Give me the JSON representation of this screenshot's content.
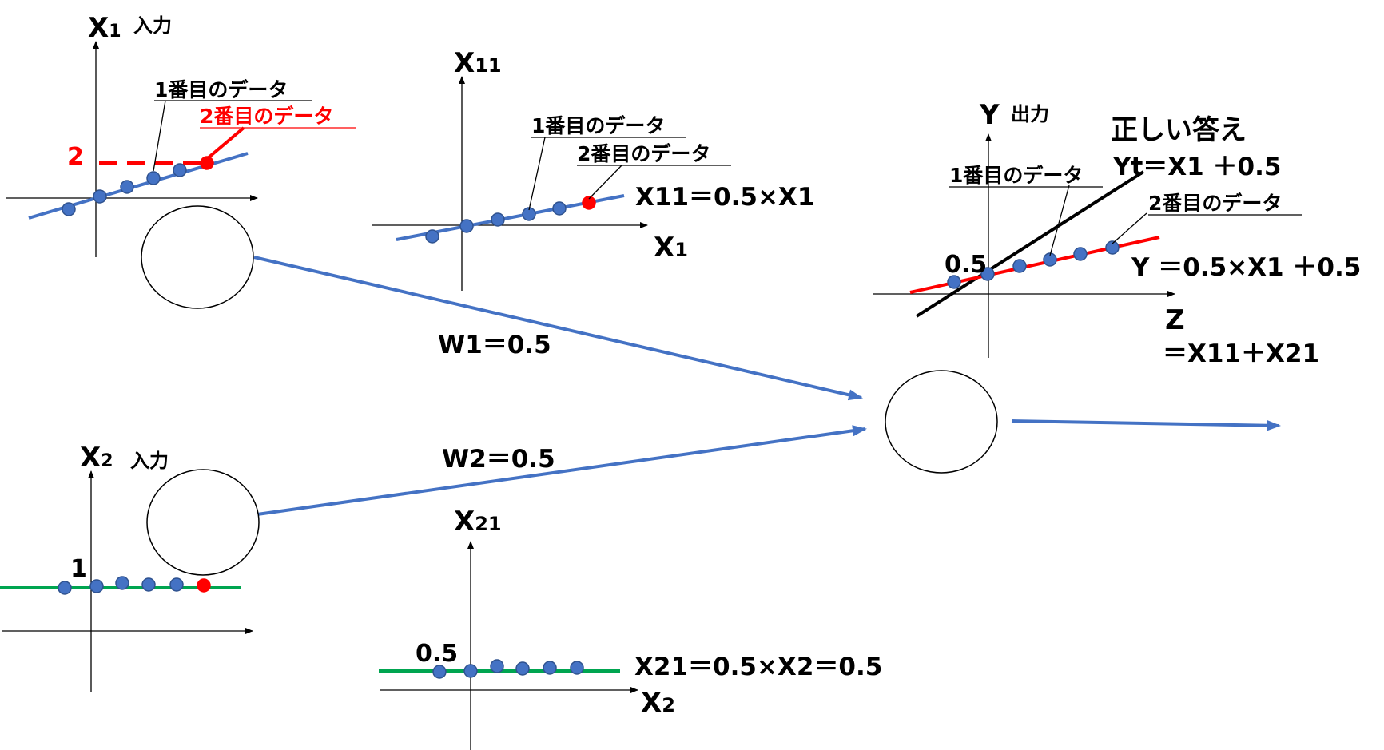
{
  "colors": {
    "blue": "#4472c4",
    "red": "#ff0000",
    "green": "#00a550",
    "black": "#000000"
  },
  "data_label_1": "1番目のデータ",
  "data_label_2": "2番目のデータ",
  "x1_plot": {
    "var_main": "X",
    "var_sub": "1",
    "caption": "入力",
    "value_marker": "2"
  },
  "x11_plot": {
    "y_main": "X",
    "y_sub": "11",
    "x_main": "X",
    "x_sub": "1",
    "equation": "X11＝0.5×X1"
  },
  "x2_plot": {
    "var_main": "X",
    "var_sub": "2",
    "caption": "入力",
    "value_marker": "1"
  },
  "x21_plot": {
    "y_main": "X",
    "y_sub": "21",
    "x_main": "X",
    "x_sub": "2",
    "value_marker": "0.5",
    "equation": "X21＝0.5×X2＝0.5"
  },
  "weights": {
    "w1": "W1＝0.5",
    "w2": "W2＝0.5"
  },
  "output_plot": {
    "y_main": "Y",
    "caption": "出力",
    "correct_title": "正しい答え",
    "correct_eq": "Yt＝X1 ＋0.5",
    "value_marker": "0.5",
    "y_eq": "Y ＝0.5×X1 ＋0.5",
    "z_label": "Z",
    "z_eq": "＝X11＋X21"
  }
}
